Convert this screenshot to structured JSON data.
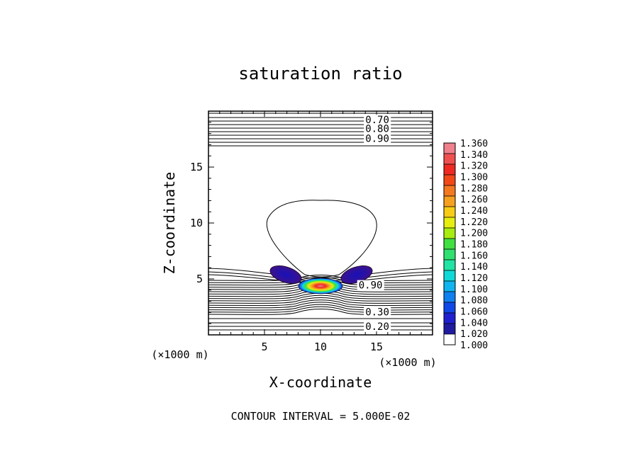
{
  "chart_data": {
    "type": "contour",
    "title": "saturation ratio",
    "xlabel": "X-coordinate",
    "ylabel": "Z-coordinate",
    "x_unit": "(×1000 m)",
    "z_unit": "(×1000 m)",
    "xlim": [
      0,
      20
    ],
    "ylim": [
      0,
      20
    ],
    "x_ticks": [
      5,
      10,
      15
    ],
    "y_ticks": [
      5,
      10,
      15
    ],
    "contour_labels": [
      {
        "text": "0.70",
        "x": 14.0,
        "z": 19.0
      },
      {
        "text": "0.80",
        "x": 14.0,
        "z": 18.2
      },
      {
        "text": "0.90",
        "x": 14.0,
        "z": 17.3
      },
      {
        "text": "0.90",
        "x": 13.4,
        "z": 4.2
      },
      {
        "text": "0.30",
        "x": 14.0,
        "z": 1.8
      },
      {
        "text": "0.20",
        "x": 14.0,
        "z": 0.5
      }
    ],
    "colorbar": {
      "levels": [
        "1.360",
        "1.340",
        "1.320",
        "1.300",
        "1.280",
        "1.260",
        "1.240",
        "1.220",
        "1.200",
        "1.180",
        "1.160",
        "1.140",
        "1.120",
        "1.100",
        "1.080",
        "1.060",
        "1.040",
        "1.020",
        "1.000"
      ],
      "colors": [
        "#f0808c",
        "#f05050",
        "#ee2a22",
        "#f24818",
        "#f47820",
        "#f6a020",
        "#f8cc16",
        "#e6ee10",
        "#a8ec10",
        "#40e040",
        "#30e070",
        "#20e4a4",
        "#10d8d8",
        "#10b4f0",
        "#1080f0",
        "#1048e8",
        "#2020d0",
        "#201aa0",
        "#401088"
      ]
    },
    "footer": "CONTOUR INTERVAL = 5.000E-02"
  }
}
